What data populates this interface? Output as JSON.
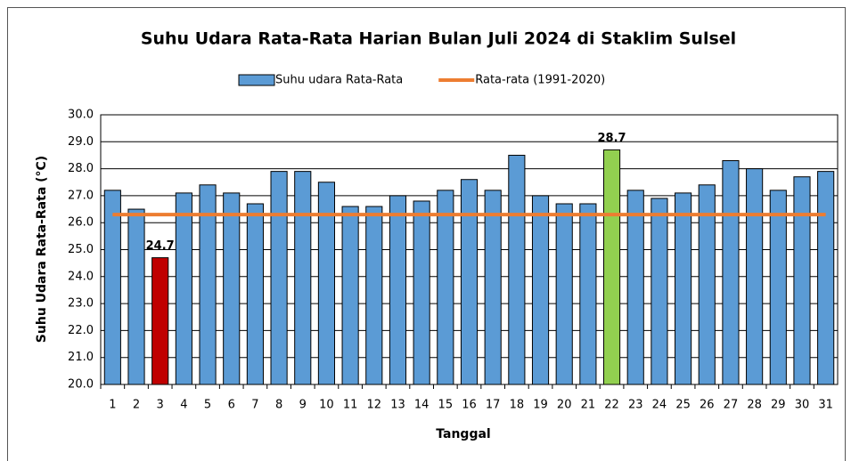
{
  "chart_data": {
    "type": "bar",
    "title": "Suhu Udara Rata-Rata Harian Bulan Juli 2024 di Staklim Sulsel",
    "x_label": "Tanggal",
    "y_label": "Suhu Udara Rata-Rata (°C)",
    "categories": [
      "1",
      "2",
      "3",
      "4",
      "5",
      "6",
      "7",
      "8",
      "9",
      "10",
      "11",
      "12",
      "13",
      "14",
      "15",
      "16",
      "17",
      "18",
      "19",
      "20",
      "21",
      "22",
      "23",
      "24",
      "25",
      "26",
      "27",
      "28",
      "29",
      "30",
      "31"
    ],
    "series": [
      {
        "name": "Suhu udara Rata-Rata",
        "type": "bar",
        "color": "#5b9bd5",
        "colors": [
          "#5b9bd5",
          "#5b9bd5",
          "#c00000",
          "#5b9bd5",
          "#5b9bd5",
          "#5b9bd5",
          "#5b9bd5",
          "#5b9bd5",
          "#5b9bd5",
          "#5b9bd5",
          "#5b9bd5",
          "#5b9bd5",
          "#5b9bd5",
          "#5b9bd5",
          "#5b9bd5",
          "#5b9bd5",
          "#5b9bd5",
          "#5b9bd5",
          "#5b9bd5",
          "#5b9bd5",
          "#5b9bd5",
          "#92d050",
          "#5b9bd5",
          "#5b9bd5",
          "#5b9bd5",
          "#5b9bd5",
          "#5b9bd5",
          "#5b9bd5",
          "#5b9bd5",
          "#5b9bd5",
          "#5b9bd5"
        ],
        "values": [
          27.2,
          26.5,
          24.7,
          27.1,
          27.4,
          27.1,
          26.7,
          27.9,
          27.9,
          27.5,
          26.6,
          26.6,
          27.0,
          26.8,
          27.2,
          27.6,
          27.2,
          28.5,
          27.0,
          26.7,
          26.7,
          28.7,
          27.2,
          26.9,
          27.1,
          27.4,
          28.3,
          28.0,
          27.2,
          27.7,
          27.9
        ],
        "value_labels": [
          null,
          null,
          "24.7",
          null,
          null,
          null,
          null,
          null,
          null,
          null,
          null,
          null,
          null,
          null,
          null,
          null,
          null,
          null,
          null,
          null,
          null,
          "28.7",
          null,
          null,
          null,
          null,
          null,
          null,
          null,
          null,
          null
        ]
      },
      {
        "name": "Rata-rata (1991-2020)",
        "type": "line",
        "color": "#ed7d31",
        "values": [
          26.3,
          26.3,
          26.3,
          26.3,
          26.3,
          26.3,
          26.3,
          26.3,
          26.3,
          26.3,
          26.3,
          26.3,
          26.3,
          26.3,
          26.3,
          26.3,
          26.3,
          26.3,
          26.3,
          26.3,
          26.3,
          26.3,
          26.3,
          26.3,
          26.3,
          26.3,
          26.3,
          26.3,
          26.3,
          26.3,
          26.3
        ]
      }
    ],
    "ylim": [
      20,
      30
    ],
    "yticks": [
      {
        "value": 20,
        "label": "20.0"
      },
      {
        "value": 21,
        "label": "21.0"
      },
      {
        "value": 22,
        "label": "22.0"
      },
      {
        "value": 23,
        "label": "23.0"
      },
      {
        "value": 24,
        "label": "24.0"
      },
      {
        "value": 25,
        "label": "25.0"
      },
      {
        "value": 26,
        "label": "26.0"
      },
      {
        "value": 27,
        "label": "27.0"
      },
      {
        "value": 28,
        "label": "28.0"
      },
      {
        "value": 29,
        "label": "29.0"
      },
      {
        "value": 30,
        "label": "30.0"
      }
    ],
    "grid": true,
    "legend": "top"
  }
}
